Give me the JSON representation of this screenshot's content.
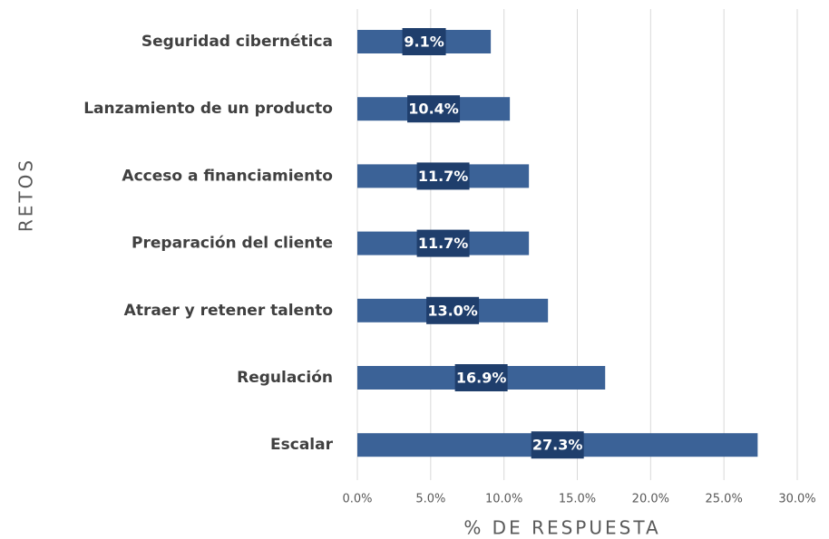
{
  "chart_data": {
    "type": "bar",
    "orientation": "horizontal",
    "xlabel": "% DE RESPUESTA",
    "ylabel": "RETOS",
    "categories": [
      "Seguridad cibernética",
      "Lanzamiento de un producto",
      "Acceso a financiamiento",
      "Preparación del cliente",
      "Atraer y retener talento",
      "Regulación",
      "Escalar"
    ],
    "values": [
      9.1,
      10.4,
      11.7,
      11.7,
      13.0,
      16.9,
      27.3
    ],
    "value_labels": [
      "9.1%",
      "10.4%",
      "11.7%",
      "11.7%",
      "13.0%",
      "16.9%",
      "27.3%"
    ],
    "color": "#3b6297",
    "label_color": "#1f3e6c",
    "xlim": [
      0,
      30
    ],
    "xticks": [
      {
        "value": 0,
        "label": "0.0%"
      },
      {
        "value": 5,
        "label": "5.0%"
      },
      {
        "value": 10,
        "label": "10.0%"
      },
      {
        "value": 15,
        "label": "15.0%"
      },
      {
        "value": 20,
        "label": "20.0%"
      },
      {
        "value": 25,
        "label": "25.0%"
      },
      {
        "value": 30,
        "label": "30.0%"
      }
    ],
    "grid": true
  }
}
